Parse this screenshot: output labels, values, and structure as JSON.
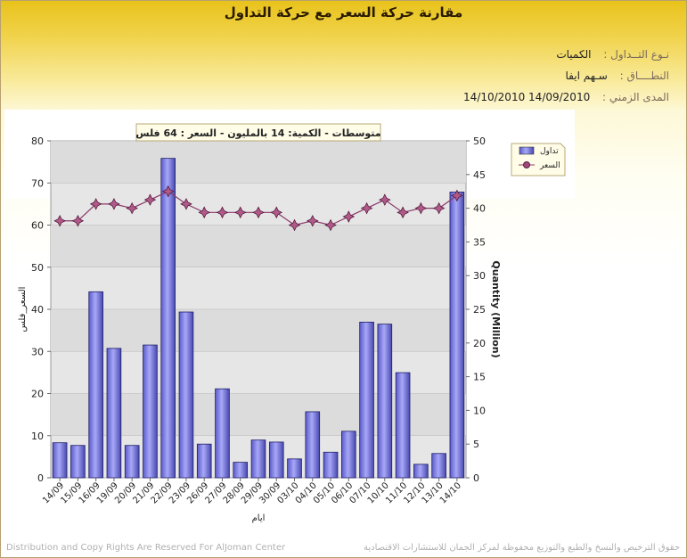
{
  "page": {
    "title": "مقارنة حركة السعر مع حركة التداول",
    "info": [
      {
        "label": "نـوع التــداول :",
        "value": "الكميات"
      },
      {
        "label": "النطــــاق :",
        "value": "سـهم   ايفا"
      },
      {
        "label": "المدى الزمني :",
        "value": "14/09/2010  14/10/2010"
      }
    ],
    "footer_left": "Distribution and Copy Rights Are Reserved For AlJoman Center",
    "footer_right": "حقوق الترخيص والنسخ والطبع والتوزيع محفوظة لمركز الجمان للاستشارات الاقتصادية"
  },
  "chart_data": {
    "type": "bar",
    "title": "متوسطات - الكمية: 14 بالمليون  - السعر : 64 فلس",
    "xlabel": "ايام",
    "ylabel_left": "السعر_فلس",
    "ylabel_right": "Quantity (Million)",
    "ylim_left": [
      0,
      80
    ],
    "ylim_right": [
      0,
      50
    ],
    "yticks_left": [
      0,
      10,
      20,
      30,
      40,
      50,
      60,
      70,
      80
    ],
    "yticks_right": [
      0,
      5,
      10,
      15,
      20,
      25,
      30,
      35,
      40,
      45,
      50
    ],
    "categories": [
      "14/09",
      "15/09",
      "16/09",
      "19/09",
      "20/09",
      "21/09",
      "22/09",
      "23/09",
      "26/09",
      "27/09",
      "28/09",
      "29/09",
      "30/09",
      "03/10",
      "04/10",
      "05/10",
      "06/10",
      "07/10",
      "10/10",
      "11/10",
      "12/10",
      "13/10",
      "14/10"
    ],
    "legend_position": "top-right",
    "grid": true,
    "series": [
      {
        "name": "تداول",
        "kind": "bar",
        "axis": "right",
        "color": "#8080e8",
        "values": [
          5.2,
          4.8,
          27.6,
          19.2,
          4.8,
          19.7,
          47.4,
          24.6,
          5.0,
          13.2,
          2.3,
          5.6,
          5.3,
          2.8,
          9.8,
          3.8,
          6.9,
          23.1,
          22.8,
          15.6,
          2.0,
          3.6,
          42.4
        ]
      },
      {
        "name": "السعر",
        "kind": "line",
        "axis": "left",
        "color": "#8b3a6a",
        "values": [
          61,
          61,
          65,
          65,
          64,
          66,
          68,
          65,
          63,
          63,
          63,
          63,
          63,
          60,
          61,
          60,
          62,
          64,
          66,
          63,
          64,
          64,
          67
        ]
      }
    ]
  }
}
